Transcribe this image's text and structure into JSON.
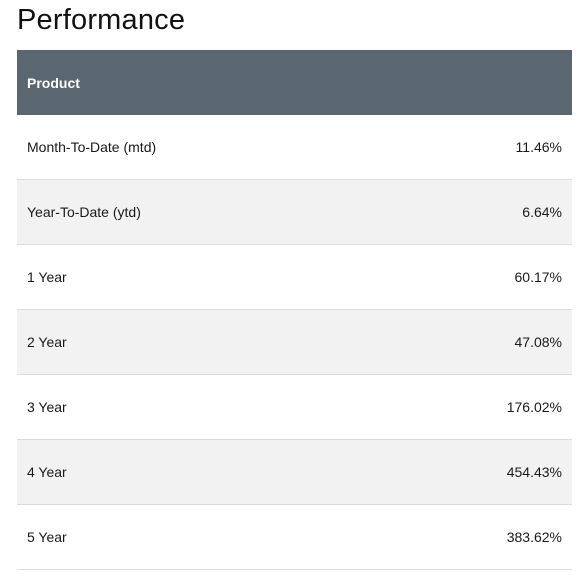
{
  "page": {
    "title": "Performance"
  },
  "table": {
    "header": {
      "product_label": "Product",
      "value_label": ""
    },
    "rows": [
      {
        "label": "Month-To-Date (mtd)",
        "value": "11.46%"
      },
      {
        "label": "Year-To-Date (ytd)",
        "value": "6.64%"
      },
      {
        "label": "1 Year",
        "value": "60.17%"
      },
      {
        "label": "2 Year",
        "value": "47.08%"
      },
      {
        "label": "3 Year",
        "value": "176.02%"
      },
      {
        "label": "4 Year",
        "value": "454.43%"
      },
      {
        "label": "5 Year",
        "value": "383.62%"
      }
    ]
  },
  "colors": {
    "header_background": "#5a6670",
    "header_text": "#ffffff",
    "alt_row_background": "#f2f2f2",
    "row_divider": "#dcdcdc"
  }
}
